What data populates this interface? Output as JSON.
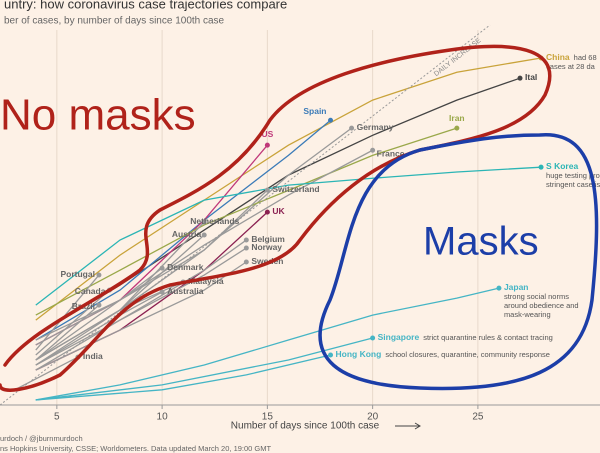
{
  "chart_data": {
    "type": "line",
    "title": "untry: how coronavirus case trajectories compare",
    "subtitle": "ber of cases, by number of days since 100th case",
    "x_label": "Number of days since 100th case",
    "guide_label": "DAILY INCREASE",
    "annotations": [
      "No masks",
      "Masks"
    ],
    "footer": [
      "urdoch / @jburnmurdoch",
      "ns Hopkins University, CSSE; Worldometers. Data updated March 20, 19:00 GMT"
    ],
    "xlim": [
      2.3,
      30.8
    ],
    "xticks": [
      5,
      10,
      15,
      20,
      25
    ],
    "ylim": [
      100,
      115000
    ],
    "log_y": true,
    "grid": true,
    "series": [
      {
        "name": "China",
        "color": "#c9a33a",
        "note": [
          "had 68",
          "cases at 28 da"
        ],
        "x": [
          4,
          8,
          12,
          16,
          20,
          24,
          28
        ],
        "values": [
          493,
          1673,
          4700,
          13200,
          30800,
          52000,
          68000
        ]
      },
      {
        "name": "Ital",
        "color": "#444444",
        "x": [
          4,
          8,
          12,
          16,
          20,
          24,
          27
        ],
        "values": [
          370,
          952,
          2680,
          7520,
          15900,
          30800,
          46500
        ]
      },
      {
        "name": "Spain",
        "color": "#3b7bb8",
        "x": [
          4,
          8,
          12,
          16,
          18
        ],
        "values": [
          339,
          867,
          3230,
          10900,
          21100
        ]
      },
      {
        "name": "US",
        "color": "#c0397a",
        "x": [
          4,
          8,
          12,
          15
        ],
        "values": [
          309,
          718,
          3230,
          13200
        ]
      },
      {
        "name": "Germany",
        "color": "#9a9a9a",
        "x": [
          4,
          8,
          12,
          16,
          19
        ],
        "values": [
          309,
          718,
          1840,
          7520,
          18200
        ]
      },
      {
        "name": "Iran",
        "color": "#9aa84a",
        "x": [
          4,
          8,
          12,
          16,
          20,
          24
        ],
        "values": [
          542,
          1260,
          2950,
          5650,
          10900,
          18200
        ]
      },
      {
        "name": "France",
        "color": "#9a9a9a",
        "x": [
          4,
          8,
          12,
          16,
          20
        ],
        "values": [
          339,
          718,
          2020,
          5170,
          12000
        ]
      },
      {
        "name": "S Korea",
        "color": "#2bb5b5",
        "note": [
          "huge testing progra",
          "stringent case isola"
        ],
        "x": [
          4,
          8,
          12,
          16,
          20,
          24,
          28
        ],
        "values": [
          653,
          2220,
          4700,
          6230,
          7090,
          7970,
          8730
        ]
      },
      {
        "name": "Switzerland",
        "color": "#9a9a9a",
        "x": [
          4,
          8,
          12,
          15
        ],
        "values": [
          233,
          596,
          1840,
          5670
        ]
      },
      {
        "name": "UK",
        "color": "#8b2252",
        "x": [
          4,
          8,
          12,
          15
        ],
        "values": [
          193,
          409,
          1260,
          3750
        ]
      },
      {
        "name": "Netherlands",
        "color": "#9a9a9a",
        "x": [
          4,
          8,
          12
        ],
        "values": [
          233,
          596,
          3110
        ]
      },
      {
        "name": "Austria",
        "color": "#9a9a9a",
        "x": [
          4,
          8,
          12
        ],
        "values": [
          212,
          596,
          2440
        ]
      },
      {
        "name": "Belgium",
        "color": "#9a9a9a",
        "x": [
          4,
          8,
          12,
          14
        ],
        "values": [
          193,
          493,
          1260,
          2220
        ]
      },
      {
        "name": "Norway",
        "color": "#9a9a9a",
        "x": [
          4,
          8,
          12,
          14
        ],
        "values": [
          212,
          493,
          1150,
          1910
        ]
      },
      {
        "name": "Sweden",
        "color": "#9a9a9a",
        "x": [
          4,
          8,
          12,
          14
        ],
        "values": [
          193,
          409,
          867,
          1470
        ]
      },
      {
        "name": "Denmark",
        "color": "#9a9a9a",
        "x": [
          4,
          8,
          10
        ],
        "values": [
          233,
          718,
          1310
        ]
      },
      {
        "name": "Portugal",
        "color": "#9a9a9a",
        "x": [
          4,
          7
        ],
        "values": [
          281,
          1150
        ]
      },
      {
        "name": "Malaysia",
        "color": "#9a9a9a",
        "x": [
          4,
          8,
          11
        ],
        "values": [
          233,
          596,
          1010
        ]
      },
      {
        "name": "Canada",
        "color": "#9a9a9a",
        "x": [
          4,
          7.5
        ],
        "values": [
          256,
          867
        ]
      },
      {
        "name": "Australia",
        "color": "#9a9a9a",
        "x": [
          4,
          8,
          10
        ],
        "values": [
          212,
          542,
          835
        ]
      },
      {
        "name": "Brazil",
        "color": "#9a9a9a",
        "x": [
          4,
          7
        ],
        "values": [
          233,
          654
        ]
      },
      {
        "name": "India",
        "color": "#9a9a9a",
        "x": [
          3,
          6
        ],
        "values": [
          133,
          246
        ]
      },
      {
        "name": "Japan",
        "color": "#45b5c5",
        "note": [
          "strong social norms",
          "around obedience and",
          "mask-wearing"
        ],
        "x": [
          4,
          8,
          12,
          16,
          20,
          24,
          26
        ],
        "values": [
          110,
          146,
          212,
          339,
          542,
          745,
          900
        ]
      },
      {
        "name": "Singapore",
        "color": "#45b5c5",
        "note": [
          "strict quarantine rules & contact tracing"
        ],
        "x": [
          4,
          10,
          16,
          20
        ],
        "values": [
          110,
          146,
          233,
          352
        ]
      },
      {
        "name": "Hong Kong",
        "color": "#45b5c5",
        "note": [
          "school closures, quarantine, community response"
        ],
        "x": [
          4,
          10,
          14,
          18
        ],
        "values": [
          110,
          133,
          176,
          256
        ]
      }
    ]
  }
}
